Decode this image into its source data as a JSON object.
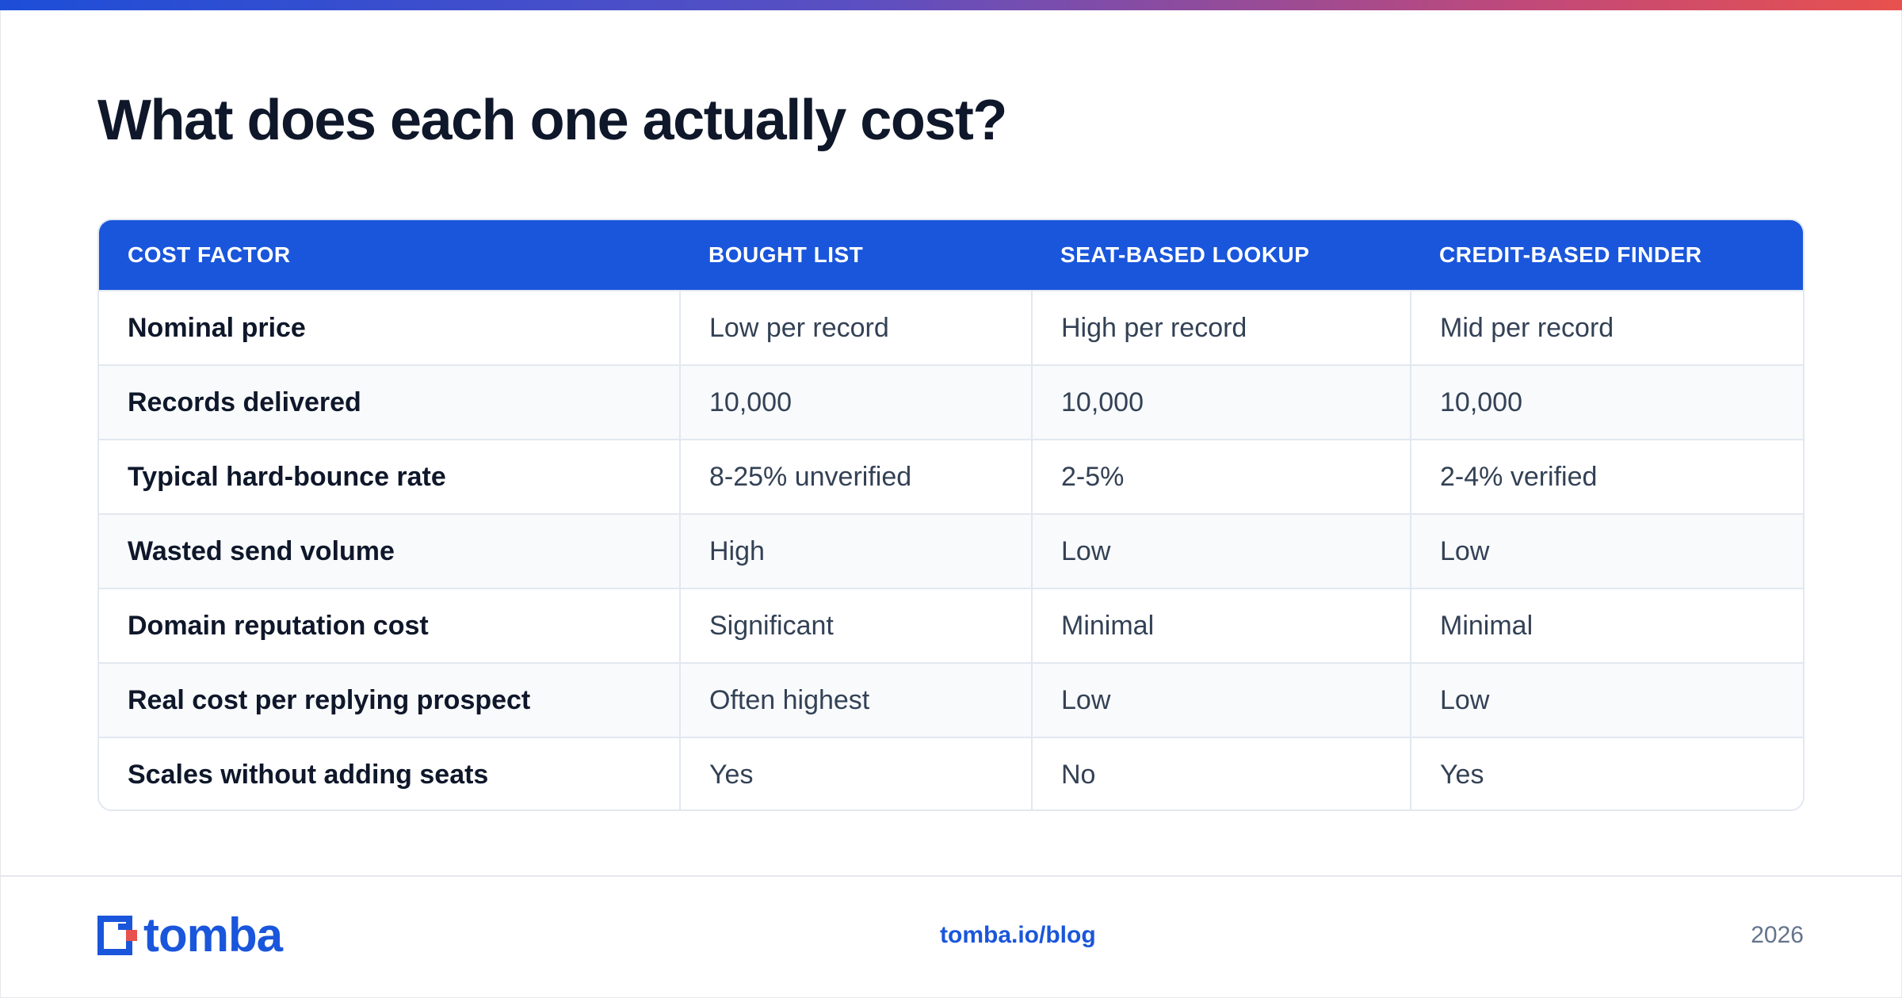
{
  "title": "What does each one actually cost?",
  "table": {
    "headers": [
      "COST FACTOR",
      "BOUGHT LIST",
      "SEAT-BASED LOOKUP",
      "CREDIT-BASED FINDER"
    ],
    "rows": [
      [
        "Nominal price",
        "Low per record",
        "High per record",
        "Mid per record"
      ],
      [
        "Records delivered",
        "10,000",
        "10,000",
        "10,000"
      ],
      [
        "Typical hard-bounce rate",
        "8-25% unverified",
        "2-5%",
        "2-4% verified"
      ],
      [
        "Wasted send volume",
        "High",
        "Low",
        "Low"
      ],
      [
        "Domain reputation cost",
        "Significant",
        "Minimal",
        "Minimal"
      ],
      [
        "Real cost per replying prospect",
        "Often highest",
        "Low",
        "Low"
      ],
      [
        "Scales without adding seats",
        "Yes",
        "No",
        "Yes"
      ]
    ]
  },
  "footer": {
    "logo_text": "tomba",
    "link": "tomba.io/blog",
    "year": "2026"
  },
  "colors": {
    "accent": "#1a56db",
    "logo_red": "#e8514d"
  }
}
